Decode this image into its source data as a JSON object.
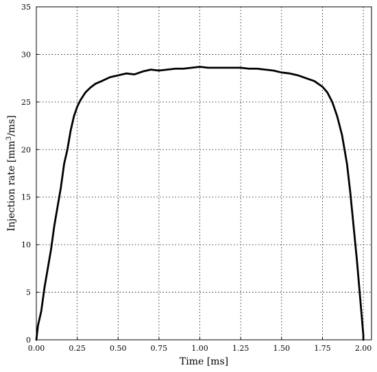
{
  "chart_data": {
    "type": "line",
    "xlabel": "Time [ms]",
    "ylabel_prefix": "Injection rate [mm",
    "ylabel_superscript": "3",
    "ylabel_suffix": "/ms]",
    "xlim": [
      0.0,
      2.05
    ],
    "ylim": [
      0,
      35
    ],
    "x_ticks": [
      "0.00",
      "0.25",
      "0.50",
      "0.75",
      "1.00",
      "1.25",
      "1.50",
      "1.75",
      "2.00"
    ],
    "y_ticks": [
      "0",
      "5",
      "10",
      "15",
      "20",
      "25",
      "30",
      "35"
    ],
    "grid": true,
    "series": [
      {
        "color": "#000000",
        "x": [
          0.0,
          0.01,
          0.03,
          0.05,
          0.07,
          0.09,
          0.11,
          0.13,
          0.15,
          0.17,
          0.19,
          0.21,
          0.23,
          0.25,
          0.27,
          0.3,
          0.33,
          0.36,
          0.4,
          0.45,
          0.5,
          0.55,
          0.6,
          0.65,
          0.7,
          0.75,
          0.8,
          0.85,
          0.9,
          0.95,
          1.0,
          1.05,
          1.1,
          1.15,
          1.2,
          1.25,
          1.3,
          1.35,
          1.4,
          1.45,
          1.5,
          1.55,
          1.6,
          1.65,
          1.7,
          1.75,
          1.78,
          1.81,
          1.84,
          1.87,
          1.9,
          1.92,
          1.94,
          1.96,
          1.97,
          1.98,
          1.99,
          2.0,
          2.0
        ],
        "y": [
          0.0,
          1.5,
          3.0,
          5.5,
          7.5,
          9.5,
          12.0,
          14.0,
          16.0,
          18.5,
          20.0,
          22.0,
          23.5,
          24.5,
          25.2,
          26.0,
          26.5,
          26.9,
          27.2,
          27.6,
          27.8,
          28.0,
          27.9,
          28.2,
          28.4,
          28.3,
          28.4,
          28.5,
          28.5,
          28.6,
          28.7,
          28.6,
          28.6,
          28.6,
          28.6,
          28.6,
          28.5,
          28.5,
          28.4,
          28.3,
          28.1,
          28.0,
          27.8,
          27.5,
          27.2,
          26.6,
          26.0,
          25.0,
          23.5,
          21.5,
          18.5,
          15.5,
          12.0,
          8.5,
          6.5,
          4.5,
          2.5,
          0.5,
          0.0
        ]
      }
    ]
  }
}
